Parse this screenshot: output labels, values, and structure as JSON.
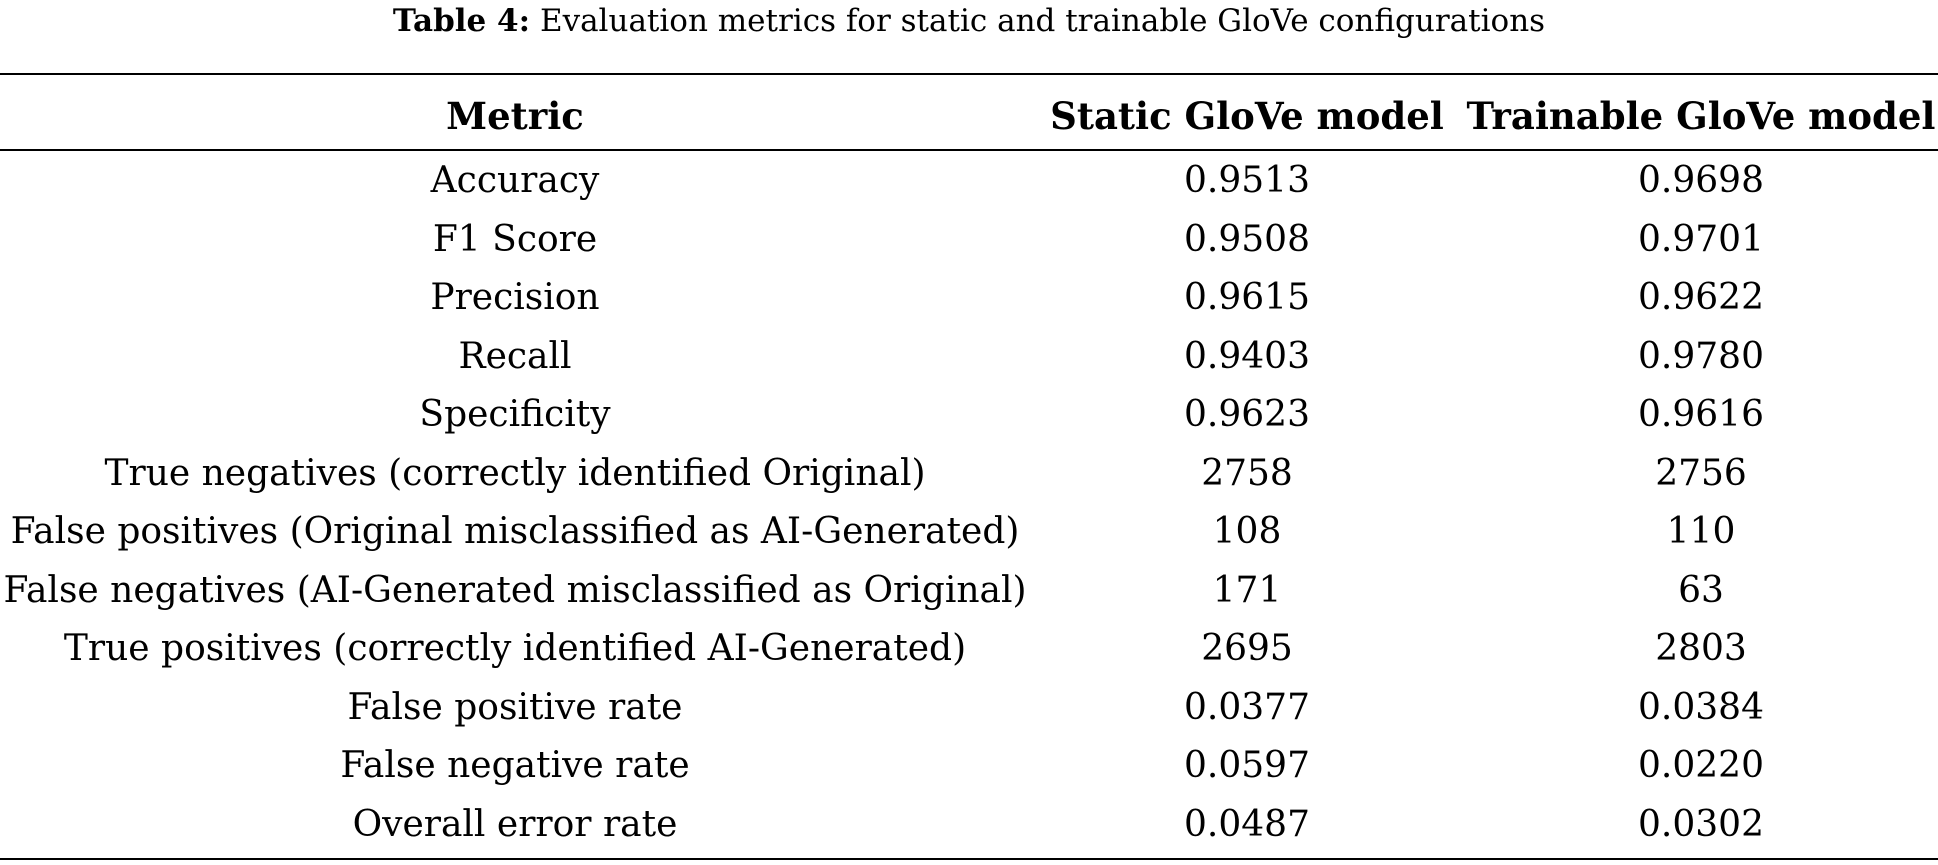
{
  "caption": {
    "label": "Table 4:",
    "text": "Evaluation metrics for static and trainable GloVe configurations"
  },
  "table": {
    "headers": [
      "Metric",
      "Static GloVe model",
      "Trainable GloVe model"
    ],
    "rows": [
      [
        "Accuracy",
        "0.9513",
        "0.9698"
      ],
      [
        "F1 Score",
        "0.9508",
        "0.9701"
      ],
      [
        "Precision",
        "0.9615",
        "0.9622"
      ],
      [
        "Recall",
        "0.9403",
        "0.9780"
      ],
      [
        "Specificity",
        "0.9623",
        "0.9616"
      ],
      [
        "True negatives (correctly identified Original)",
        "2758",
        "2756"
      ],
      [
        "False positives (Original misclassified as AI-Generated)",
        "108",
        "110"
      ],
      [
        "False negatives (AI-Generated misclassified as Original)",
        "171",
        "63"
      ],
      [
        "True positives (correctly identified AI-Generated)",
        "2695",
        "2803"
      ],
      [
        "False positive rate",
        "0.0377",
        "0.0384"
      ],
      [
        "False negative rate",
        "0.0597",
        "0.0220"
      ],
      [
        "Overall error rate",
        "0.0487",
        "0.0302"
      ]
    ]
  }
}
